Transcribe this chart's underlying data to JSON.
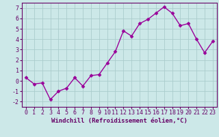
{
  "x": [
    0,
    1,
    2,
    3,
    4,
    5,
    6,
    7,
    8,
    9,
    10,
    11,
    12,
    13,
    14,
    15,
    16,
    17,
    18,
    19,
    20,
    21,
    22,
    23
  ],
  "y": [
    0.3,
    -0.3,
    -0.2,
    -1.8,
    -1.0,
    -0.7,
    0.3,
    -0.5,
    0.5,
    0.6,
    1.7,
    2.8,
    4.8,
    4.3,
    5.5,
    5.9,
    6.5,
    7.1,
    6.5,
    5.3,
    5.5,
    4.0,
    2.7,
    3.8
  ],
  "line_color": "#990099",
  "marker": "D",
  "markersize": 2.5,
  "linewidth": 1.0,
  "xlabel": "Windchill (Refroidissement éolien,°C)",
  "xlabel_fontsize": 6.5,
  "bg_color": "#cce8e8",
  "grid_color": "#aacccc",
  "xlim": [
    -0.5,
    23.5
  ],
  "ylim": [
    -2.5,
    7.5
  ],
  "yticks": [
    -2,
    -1,
    0,
    1,
    2,
    3,
    4,
    5,
    6,
    7
  ],
  "xticks": [
    0,
    1,
    2,
    3,
    4,
    5,
    6,
    7,
    8,
    9,
    10,
    11,
    12,
    13,
    14,
    15,
    16,
    17,
    18,
    19,
    20,
    21,
    22,
    23
  ],
  "tick_fontsize": 6.0,
  "spine_color": "#660066",
  "text_color": "#660066"
}
